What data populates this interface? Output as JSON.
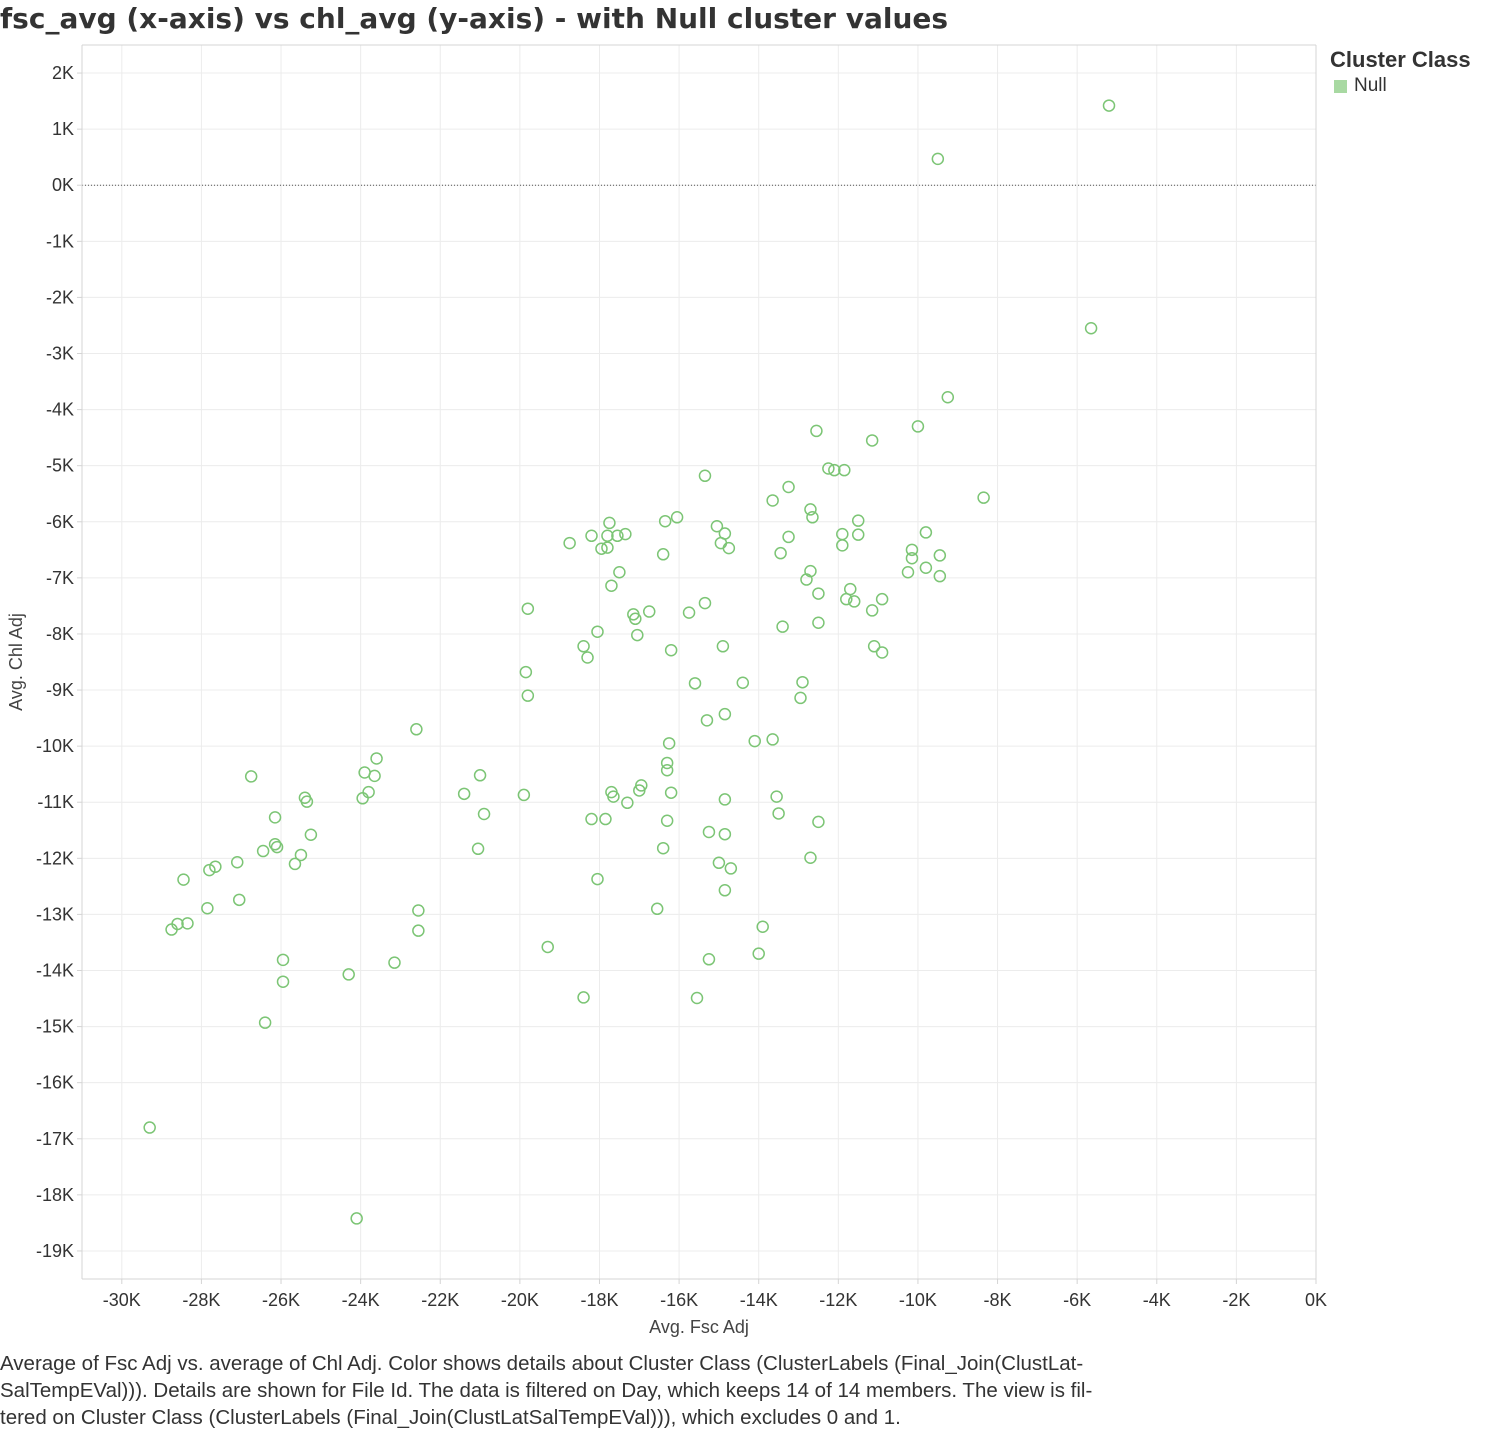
{
  "title": "fsc_avg (x-axis) vs chl_avg (y-axis) - with Null cluster values",
  "legend": {
    "title": "Cluster Class",
    "items": [
      {
        "label": "Null",
        "color": "#a8d9a2"
      }
    ]
  },
  "caption": {
    "lines": [
      "Average of Fsc Adj vs. average of Chl Adj.  Color shows details about Cluster Class (ClusterLabels (Final_Join(ClustLat-",
      "SalTempEVal))).  Details are shown for File Id. The data is filtered on Day, which keeps 14 of 14 members. The view is fil-",
      "tered on Cluster Class (ClusterLabels (Final_Join(ClustLatSalTempEVal))), which excludes 0 and 1."
    ]
  },
  "colors": {
    "marker": "#7cc575",
    "grid": "#ececec",
    "axis": "#d4d4d4",
    "zero_line": "#555555"
  },
  "chart_data": {
    "type": "scatter",
    "xlabel": "Avg. Fsc Adj",
    "ylabel": "Avg. Chl Adj",
    "xlim": [
      -31000,
      0
    ],
    "ylim": [
      -19500,
      2500
    ],
    "x_ticks": [
      -30000,
      -28000,
      -26000,
      -24000,
      -22000,
      -20000,
      -18000,
      -16000,
      -14000,
      -12000,
      -10000,
      -8000,
      -6000,
      -4000,
      -2000,
      0
    ],
    "x_tick_labels": [
      "-30K",
      "-28K",
      "-26K",
      "-24K",
      "-22K",
      "-20K",
      "-18K",
      "-16K",
      "-14K",
      "-12K",
      "-10K",
      "-8K",
      "-6K",
      "-4K",
      "-2K",
      "0K"
    ],
    "y_ticks": [
      2000,
      1000,
      0,
      -1000,
      -2000,
      -3000,
      -4000,
      -5000,
      -6000,
      -7000,
      -8000,
      -9000,
      -10000,
      -11000,
      -12000,
      -13000,
      -14000,
      -15000,
      -16000,
      -17000,
      -18000,
      -19000
    ],
    "y_tick_labels": [
      "2K",
      "1K",
      "0K",
      "-1K",
      "-2K",
      "-3K",
      "-4K",
      "-5K",
      "-6K",
      "-7K",
      "-8K",
      "-9K",
      "-10K",
      "-11K",
      "-12K",
      "-13K",
      "-14K",
      "-15K",
      "-16K",
      "-17K",
      "-18K",
      "-19K"
    ],
    "grid": true,
    "zero_line": true,
    "marker": "hollow-circle",
    "legend_position": "right",
    "series": [
      {
        "name": "Null",
        "points": [
          [
            -5200,
            1420
          ],
          [
            -9500,
            470
          ],
          [
            -5650,
            -2550
          ],
          [
            -9250,
            -3780
          ],
          [
            -10000,
            -4300
          ],
          [
            -11150,
            -4550
          ],
          [
            -12550,
            -4380
          ],
          [
            -12250,
            -5050
          ],
          [
            -12100,
            -5080
          ],
          [
            -11850,
            -5080
          ],
          [
            -8350,
            -5570
          ],
          [
            -13250,
            -5380
          ],
          [
            -13650,
            -5620
          ],
          [
            -15350,
            -5180
          ],
          [
            -12700,
            -5780
          ],
          [
            -12650,
            -5920
          ],
          [
            -11500,
            -5980
          ],
          [
            -11500,
            -6230
          ],
          [
            -11900,
            -6220
          ],
          [
            -11900,
            -6420
          ],
          [
            -9800,
            -6190
          ],
          [
            -9450,
            -6600
          ],
          [
            -9450,
            -6970
          ],
          [
            -9800,
            -6820
          ],
          [
            -10150,
            -6500
          ],
          [
            -10150,
            -6650
          ],
          [
            -10250,
            -6900
          ],
          [
            -11700,
            -7200
          ],
          [
            -11600,
            -7420
          ],
          [
            -11800,
            -7380
          ],
          [
            -10900,
            -7380
          ],
          [
            -11150,
            -7580
          ],
          [
            -12500,
            -7280
          ],
          [
            -12500,
            -7800
          ],
          [
            -12700,
            -6880
          ],
          [
            -12800,
            -7030
          ],
          [
            -13450,
            -6560
          ],
          [
            -13250,
            -6270
          ],
          [
            -13400,
            -7870
          ],
          [
            -11100,
            -8220
          ],
          [
            -10900,
            -8330
          ],
          [
            -12900,
            -8860
          ],
          [
            -12950,
            -9140
          ],
          [
            -13650,
            -9880
          ],
          [
            -14100,
            -9910
          ],
          [
            -14400,
            -8870
          ],
          [
            -14900,
            -8220
          ],
          [
            -14850,
            -9430
          ],
          [
            -15300,
            -9540
          ],
          [
            -15050,
            -6080
          ],
          [
            -14950,
            -6380
          ],
          [
            -14850,
            -6210
          ],
          [
            -14750,
            -6470
          ],
          [
            -15350,
            -7450
          ],
          [
            -15750,
            -7620
          ],
          [
            -15600,
            -8880
          ],
          [
            -16050,
            -5920
          ],
          [
            -16350,
            -5990
          ],
          [
            -16400,
            -6580
          ],
          [
            -16200,
            -8290
          ],
          [
            -16250,
            -9950
          ],
          [
            -16300,
            -10300
          ],
          [
            -16300,
            -10430
          ],
          [
            -16200,
            -10830
          ],
          [
            -16300,
            -11330
          ],
          [
            -16400,
            -11820
          ],
          [
            -16550,
            -12900
          ],
          [
            -16750,
            -7600
          ],
          [
            -17050,
            -8020
          ],
          [
            -17150,
            -7650
          ],
          [
            -17100,
            -7730
          ],
          [
            -17350,
            -6220
          ],
          [
            -17500,
            -6900
          ],
          [
            -17550,
            -6250
          ],
          [
            -17750,
            -6020
          ],
          [
            -17800,
            -6250
          ],
          [
            -17800,
            -6460
          ],
          [
            -17700,
            -7140
          ],
          [
            -17950,
            -6480
          ],
          [
            -18200,
            -6250
          ],
          [
            -18050,
            -7960
          ],
          [
            -18300,
            -8420
          ],
          [
            -18400,
            -8220
          ],
          [
            -18750,
            -6380
          ],
          [
            -17650,
            -10900
          ],
          [
            -17700,
            -10820
          ],
          [
            -18200,
            -11300
          ],
          [
            -17850,
            -11300
          ],
          [
            -18050,
            -12370
          ],
          [
            -18400,
            -14480
          ],
          [
            -17300,
            -11010
          ],
          [
            -17000,
            -10790
          ],
          [
            -16950,
            -10700
          ],
          [
            -14850,
            -10950
          ],
          [
            -14850,
            -11570
          ],
          [
            -14850,
            -12570
          ],
          [
            -15000,
            -12080
          ],
          [
            -14700,
            -12180
          ],
          [
            -15250,
            -11530
          ],
          [
            -15250,
            -13800
          ],
          [
            -15550,
            -14490
          ],
          [
            -13900,
            -13220
          ],
          [
            -14000,
            -13700
          ],
          [
            -13550,
            -10900
          ],
          [
            -13500,
            -11200
          ],
          [
            -12500,
            -11350
          ],
          [
            -12700,
            -11990
          ],
          [
            -19800,
            -7550
          ],
          [
            -19850,
            -8680
          ],
          [
            -19800,
            -9100
          ],
          [
            -19900,
            -10870
          ],
          [
            -19300,
            -13580
          ],
          [
            -21000,
            -10520
          ],
          [
            -20900,
            -11210
          ],
          [
            -21050,
            -11830
          ],
          [
            -21400,
            -10850
          ],
          [
            -22600,
            -9700
          ],
          [
            -22550,
            -12930
          ],
          [
            -22550,
            -13290
          ],
          [
            -23150,
            -13860
          ],
          [
            -23600,
            -10220
          ],
          [
            -23650,
            -10530
          ],
          [
            -23800,
            -10820
          ],
          [
            -23900,
            -10470
          ],
          [
            -23950,
            -10930
          ],
          [
            -24300,
            -14070
          ],
          [
            -24100,
            -18420
          ],
          [
            -25250,
            -11580
          ],
          [
            -25350,
            -10990
          ],
          [
            -25400,
            -10920
          ],
          [
            -25500,
            -11940
          ],
          [
            -25650,
            -12100
          ],
          [
            -25950,
            -13810
          ],
          [
            -25950,
            -14200
          ],
          [
            -26100,
            -11800
          ],
          [
            -26150,
            -11750
          ],
          [
            -26150,
            -11270
          ],
          [
            -26400,
            -14930
          ],
          [
            -26450,
            -11870
          ],
          [
            -26750,
            -10540
          ],
          [
            -27050,
            -12740
          ],
          [
            -27100,
            -12070
          ],
          [
            -27650,
            -12150
          ],
          [
            -27800,
            -12210
          ],
          [
            -27850,
            -12890
          ],
          [
            -28350,
            -13160
          ],
          [
            -28450,
            -12380
          ],
          [
            -28600,
            -13170
          ],
          [
            -28750,
            -13270
          ],
          [
            -29300,
            -16800
          ]
        ]
      }
    ]
  }
}
